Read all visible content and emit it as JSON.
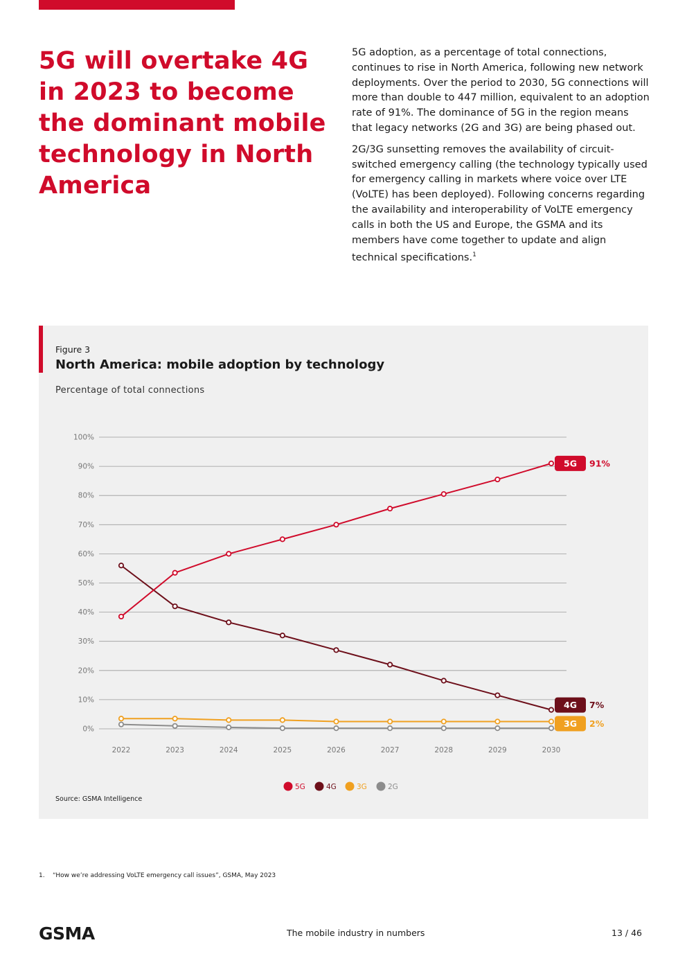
{
  "headline": "5G will overtake 4G in 2023 to become the dominant mobile technology in North America",
  "body": {
    "p1": "5G adoption, as a percentage of total connections, continues to rise in North America, following new network deployments. Over the period to 2030, 5G connections will more than double to 447 million, equivalent to an adoption rate of 91%. The dominance of 5G in the region means that legacy networks (2G and 3G) are being phased out.",
    "p2": "2G/3G sunsetting removes the availability of circuit-switched emergency calling (the technology typically used for emergency calling in markets where voice over LTE (VoLTE) has been deployed). Following concerns regarding the availability and interoperability of VoLTE emergency calls in both the US and Europe, the GSMA and its members have come together to update and align technical specifications.",
    "p2_ref": "1"
  },
  "figure": {
    "label": "Figure 3",
    "title": "North America: mobile adoption by technology",
    "subtitle": "Percentage of total connections",
    "source": "Source: GSMA Intelligence"
  },
  "chart_data": {
    "type": "line",
    "title": "North America: mobile adoption by technology",
    "ylabel": "Percentage of total connections",
    "xlabel": "",
    "ylim": [
      0,
      100
    ],
    "y_ticks": [
      0,
      10,
      20,
      30,
      40,
      50,
      60,
      70,
      80,
      90,
      100
    ],
    "tick_suffix": "%",
    "grid": true,
    "legend_position": "bottom-center",
    "categories": [
      "2022",
      "2023",
      "2024",
      "2025",
      "2026",
      "2027",
      "2028",
      "2029",
      "2030"
    ],
    "series": [
      {
        "name": "5G",
        "color": "#d00b2b",
        "values": [
          38.5,
          53.5,
          60,
          65,
          70,
          75.5,
          80.5,
          85.5,
          91
        ],
        "end_label": "91%"
      },
      {
        "name": "4G",
        "color": "#6d0f1a",
        "values": [
          56,
          42,
          36.5,
          32,
          27,
          22,
          16.5,
          11.5,
          6.5
        ],
        "end_label": "7%"
      },
      {
        "name": "3G",
        "color": "#f0a020",
        "values": [
          3.5,
          3.5,
          3,
          3,
          2.5,
          2.5,
          2.5,
          2.5,
          2.5
        ],
        "end_label": "2%"
      },
      {
        "name": "2G",
        "color": "#8c8c8c",
        "values": [
          1.5,
          1,
          0.5,
          0.2,
          0.2,
          0.2,
          0.2,
          0.2,
          0.2
        ],
        "end_label": ""
      }
    ]
  },
  "footnote": {
    "number": "1.",
    "text": "“How we’re addressing VoLTE emergency call issues”, GSMA, May 2023"
  },
  "footer": {
    "logo_text": "GSMA",
    "center": "The mobile industry in numbers",
    "page": "13 / 46"
  },
  "colors": {
    "brand_red": "#d00b2b",
    "panel_bg": "#f0f0f0"
  }
}
